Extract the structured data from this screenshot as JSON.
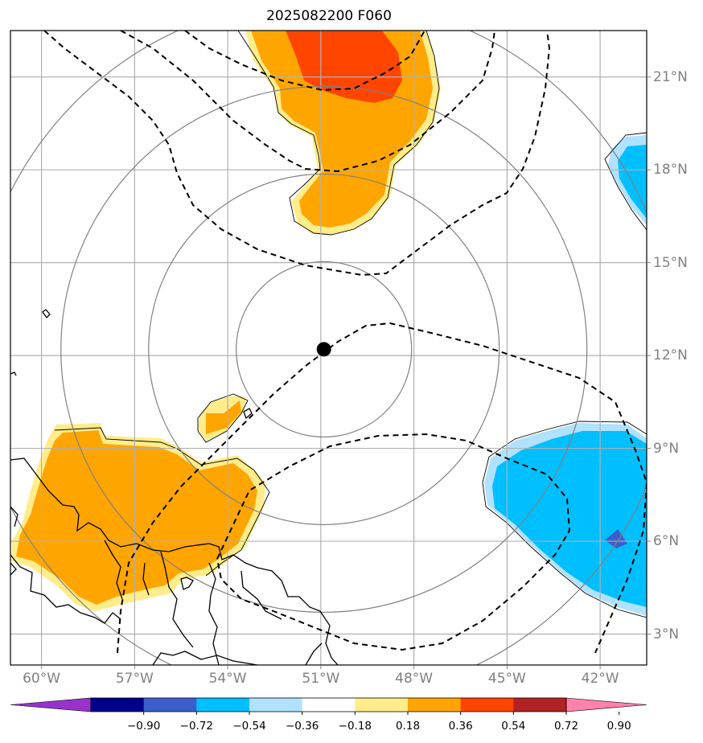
{
  "title": "2025082200 F060",
  "map": {
    "lon_range": [
      -61,
      -40.5
    ],
    "lat_range": [
      2,
      22.5
    ],
    "storm_center": {
      "lon": -50.9,
      "lat": 12.2
    },
    "range_ring_count": 4,
    "lat_ticks": [
      {
        "value": 3,
        "label": "3°N"
      },
      {
        "value": 6,
        "label": "6°N"
      },
      {
        "value": 9,
        "label": "9°N"
      },
      {
        "value": 12,
        "label": "12°N"
      },
      {
        "value": 15,
        "label": "15°N"
      },
      {
        "value": 18,
        "label": "18°N"
      },
      {
        "value": 21,
        "label": "21°N"
      }
    ],
    "lon_ticks": [
      {
        "value": -60,
        "label": "60°W"
      },
      {
        "value": -57,
        "label": "57°W"
      },
      {
        "value": -54,
        "label": "54°W"
      },
      {
        "value": -51,
        "label": "51°W"
      },
      {
        "value": -48,
        "label": "48°W"
      },
      {
        "value": -45,
        "label": "45°W"
      },
      {
        "value": -42,
        "label": "42°W"
      }
    ]
  },
  "colorbar": {
    "bounds": [
      -0.9,
      -0.72,
      -0.54,
      -0.36,
      -0.18,
      0.18,
      0.36,
      0.54,
      0.72,
      0.9
    ],
    "labels": [
      "−0.90",
      "−0.72",
      "−0.54",
      "−0.36",
      "−0.18",
      "0.18",
      "0.36",
      "0.54",
      "0.72",
      "0.90"
    ],
    "colors": [
      "#9932cc",
      "#00008b",
      "#3a5fcd",
      "#00bfff",
      "#b0e2ff",
      "#ffffff",
      "#ffec8b",
      "#ffa500",
      "#ff4500",
      "#b22222",
      "#ff82ab"
    ]
  },
  "colors": {
    "grid": "#b0b0b0",
    "rings": "#808080",
    "coast": "#000000",
    "contour": "#000000",
    "center": "#000000"
  }
}
